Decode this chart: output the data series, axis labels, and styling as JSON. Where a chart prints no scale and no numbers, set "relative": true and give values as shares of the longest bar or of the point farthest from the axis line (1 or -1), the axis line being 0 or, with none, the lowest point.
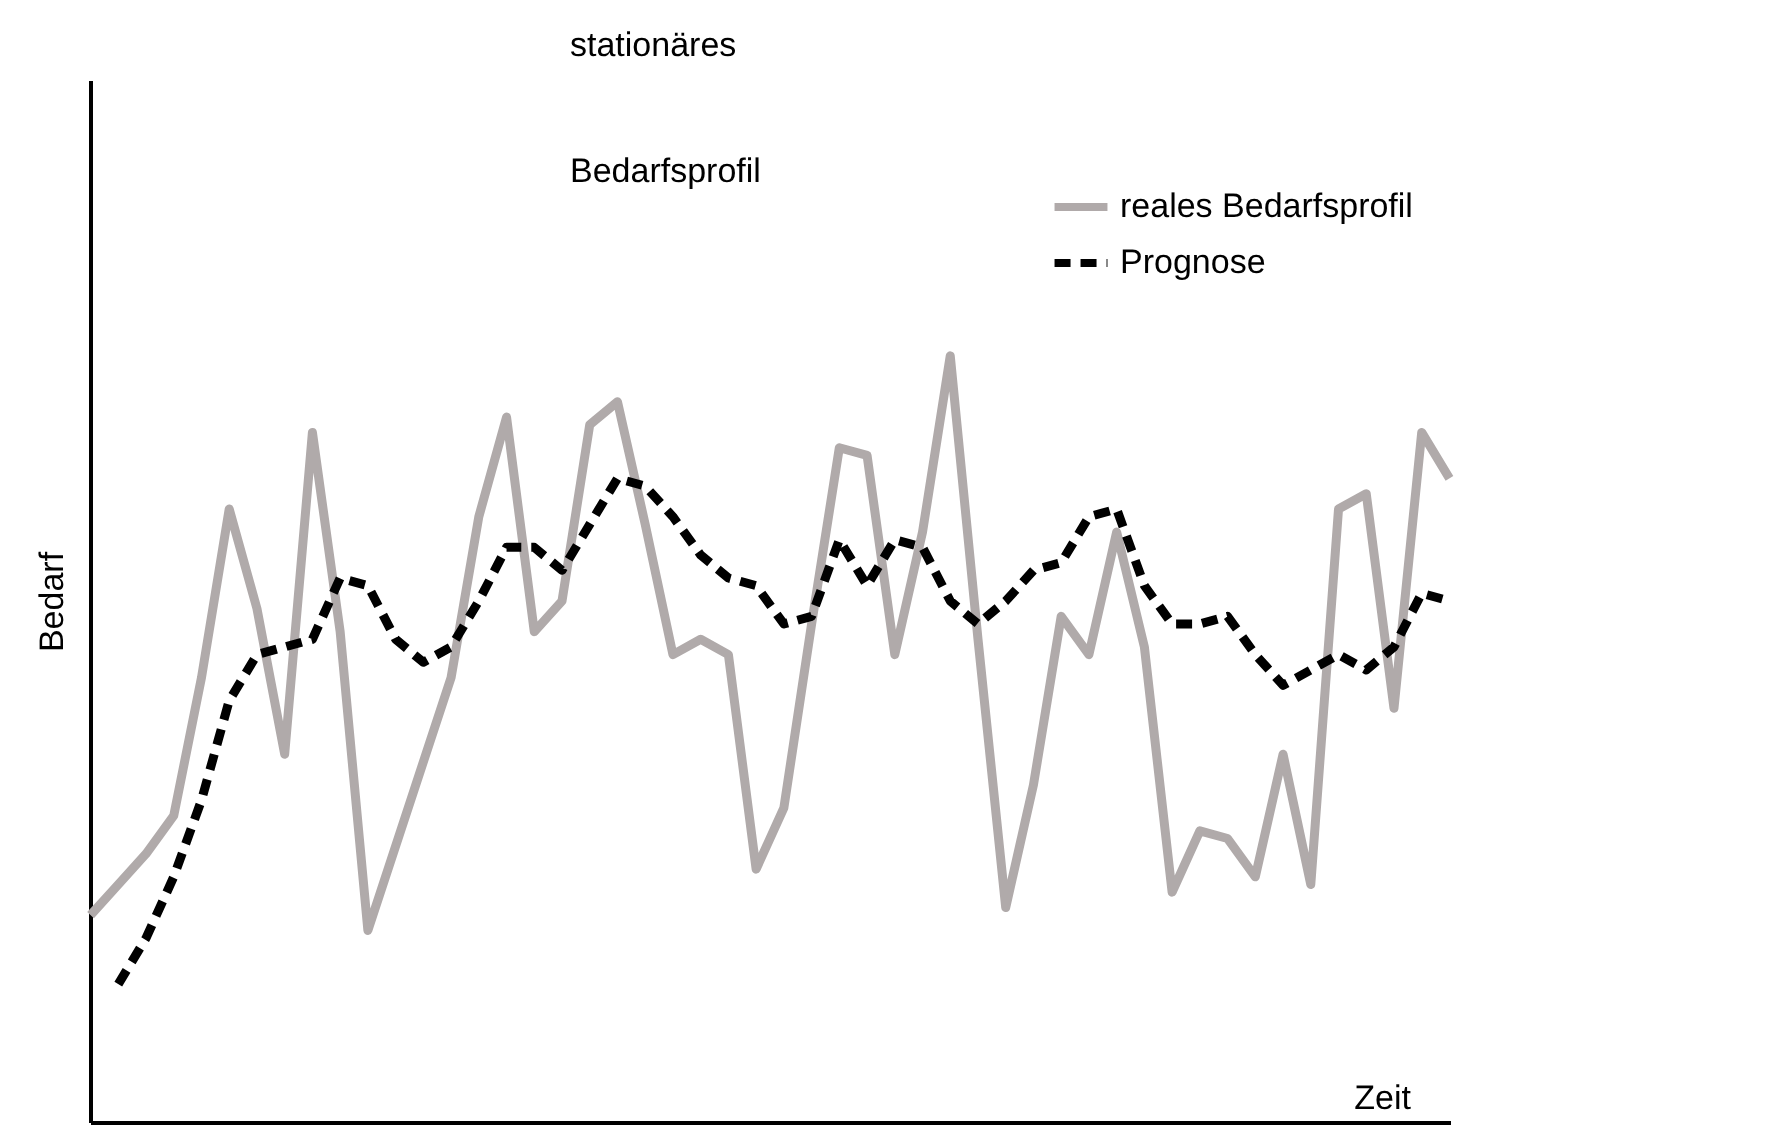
{
  "chart_data": {
    "type": "line",
    "title": "stationäres",
    "subtitle": "Bedarfsprofil",
    "xlabel": "Zeit",
    "ylabel": "Bedarf",
    "relative": true,
    "legend": "top right",
    "marker": "none",
    "categories": [
      null,
      null,
      null,
      null,
      null,
      null,
      null,
      null,
      null,
      null,
      null,
      null,
      null,
      null,
      null,
      null,
      null,
      null,
      null,
      null,
      null,
      null,
      null,
      null,
      null,
      null,
      null,
      null,
      null,
      null,
      null,
      null,
      null,
      null,
      null,
      null,
      null,
      null,
      null,
      null,
      null,
      null,
      null,
      null,
      null,
      null,
      null,
      null,
      null,
      null
    ],
    "series": [
      {
        "name": "reales Bedarfsprofil",
        "color": "#b0aaaa",
        "line_style": "solid",
        "values": [
          0.27,
          0.31,
          0.35,
          0.4,
          0.58,
          0.8,
          0.67,
          0.48,
          0.9,
          0.64,
          0.25,
          0.36,
          0.47,
          0.58,
          0.79,
          0.92,
          0.64,
          0.68,
          0.91,
          0.94,
          0.78,
          0.61,
          0.63,
          0.61,
          0.33,
          0.41,
          0.65,
          0.88,
          0.87,
          0.61,
          0.77,
          1.0,
          0.63,
          0.28,
          0.44,
          0.66,
          0.61,
          0.77,
          0.62,
          0.3,
          0.38,
          0.37,
          0.32,
          0.48,
          0.31,
          0.8,
          0.82,
          0.54,
          0.9,
          0.84
        ]
      },
      {
        "name": "Prognose",
        "color": "#000000",
        "line_style": "dashed",
        "values": [
          null,
          0.18,
          0.24,
          0.32,
          0.42,
          0.55,
          0.61,
          0.62,
          0.63,
          0.71,
          0.7,
          0.63,
          0.6,
          0.62,
          0.68,
          0.75,
          0.75,
          0.72,
          0.78,
          0.84,
          0.83,
          0.79,
          0.74,
          0.71,
          0.7,
          0.65,
          0.66,
          0.76,
          0.7,
          0.76,
          0.75,
          0.68,
          0.65,
          0.68,
          0.72,
          0.73,
          0.79,
          0.8,
          0.7,
          0.65,
          0.65,
          0.66,
          0.61,
          0.57,
          0.59,
          0.61,
          0.59,
          0.62,
          0.69,
          0.68
        ]
      }
    ]
  }
}
